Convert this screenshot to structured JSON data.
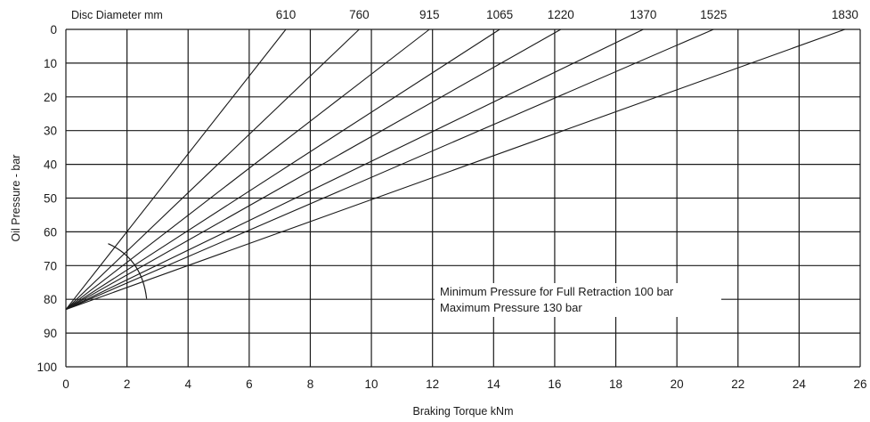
{
  "chart_data": {
    "type": "line",
    "title": "",
    "xlabel": "Braking Torque kNm",
    "ylabel": "Oil Pressure - bar",
    "top_axis_label": "Disc Diameter mm",
    "xlim": [
      0,
      26
    ],
    "ylim": [
      0,
      100
    ],
    "y_inverted": true,
    "grid": true,
    "x_ticks": [
      "0",
      "2",
      "4",
      "6",
      "8",
      "10",
      "12",
      "14",
      "16",
      "18",
      "20",
      "22",
      "24",
      "26"
    ],
    "y_ticks": [
      "0",
      "10",
      "20",
      "30",
      "40",
      "50",
      "60",
      "70",
      "80",
      "90",
      "100"
    ],
    "series": [
      {
        "name": "610",
        "x": [
          0,
          7.2
        ],
        "y": [
          83,
          0
        ]
      },
      {
        "name": "760",
        "x": [
          0,
          9.6
        ],
        "y": [
          83,
          0
        ]
      },
      {
        "name": "915",
        "x": [
          0,
          11.9
        ],
        "y": [
          83,
          0
        ]
      },
      {
        "name": "1065",
        "x": [
          0,
          14.2
        ],
        "y": [
          83,
          0
        ]
      },
      {
        "name": "1220",
        "x": [
          0,
          16.2
        ],
        "y": [
          83,
          0
        ]
      },
      {
        "name": "1370",
        "x": [
          0,
          18.9
        ],
        "y": [
          83,
          0
        ]
      },
      {
        "name": "1525",
        "x": [
          0,
          21.2
        ],
        "y": [
          83,
          0
        ]
      },
      {
        "name": "1830",
        "x": [
          0,
          25.5
        ],
        "y": [
          83,
          0
        ]
      }
    ],
    "annotations": [
      "Minimum Pressure for Full Retraction 100 bar",
      "Maximum Pressure 130 bar"
    ]
  }
}
